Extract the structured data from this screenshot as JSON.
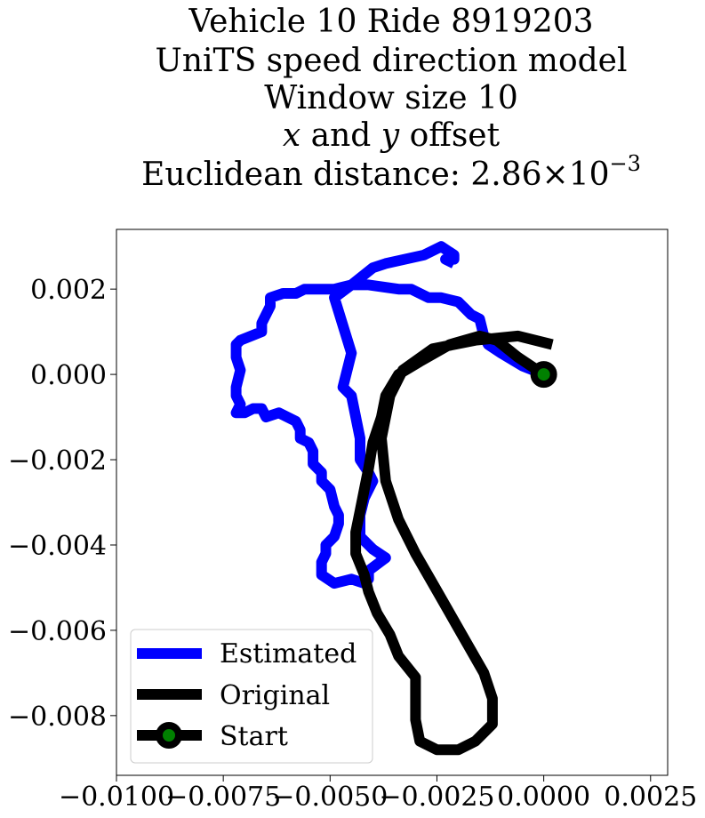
{
  "chart_data": {
    "type": "line",
    "title_lines": [
      "Vehicle 10 Ride 8919203",
      "UniTS speed direction model",
      "Window size 10"
    ],
    "title_offset": {
      "x": "x",
      "and": " and ",
      "y": "y",
      "suffix": " offset"
    },
    "title_distance": {
      "prefix": "Euclidean distance: ",
      "mantissa": "2.86",
      "times": "×",
      "base": "10",
      "exponent": "−3"
    },
    "xlabel": "",
    "ylabel": "",
    "xlim": [
      -0.01,
      0.0029
    ],
    "ylim": [
      -0.0094,
      0.0034
    ],
    "xticks": [
      -0.01,
      -0.0075,
      -0.005,
      -0.0025,
      0.0,
      0.0025
    ],
    "xtick_labels": [
      "−0.0100",
      "−0.0075",
      "−0.0050",
      "−0.0025",
      "0.0000",
      "0.0025"
    ],
    "yticks": [
      0.002,
      0.0,
      -0.002,
      -0.004,
      -0.006,
      -0.008
    ],
    "ytick_labels": [
      "0.002",
      "0.000",
      "−0.002",
      "−0.004",
      "−0.006",
      "−0.008"
    ],
    "grid": false,
    "legend_position": "lower-left",
    "series": [
      {
        "name": "Estimated",
        "color": "#0000ff",
        "points": [
          [
            0.0,
            0.0
          ],
          [
            -0.0005,
            0.0002
          ],
          [
            -0.001,
            0.0005
          ],
          [
            -0.0013,
            0.0007
          ],
          [
            -0.0014,
            0.0009
          ],
          [
            -0.0015,
            0.0013
          ],
          [
            -0.0017,
            0.0014
          ],
          [
            -0.002,
            0.0017
          ],
          [
            -0.0024,
            0.0018
          ],
          [
            -0.0027,
            0.0018
          ],
          [
            -0.0031,
            0.002
          ],
          [
            -0.0034,
            0.002
          ],
          [
            -0.0041,
            0.0021
          ],
          [
            -0.0045,
            0.0021
          ],
          [
            -0.0049,
            0.002
          ],
          [
            -0.0052,
            0.002
          ],
          [
            -0.0056,
            0.002
          ],
          [
            -0.0058,
            0.0019
          ],
          [
            -0.006,
            0.0019
          ],
          [
            -0.0061,
            0.0019
          ],
          [
            -0.0064,
            0.0018
          ],
          [
            -0.0064,
            0.0016
          ],
          [
            -0.0066,
            0.0012
          ],
          [
            -0.0066,
            0.001
          ],
          [
            -0.0071,
            0.0008
          ],
          [
            -0.0072,
            0.0007
          ],
          [
            -0.0072,
            0.0004
          ],
          [
            -0.0071,
            0.0001
          ],
          [
            -0.0072,
            -0.0003
          ],
          [
            -0.0072,
            -0.0005
          ],
          [
            -0.0071,
            -0.0007
          ],
          [
            -0.0072,
            -0.0009
          ],
          [
            -0.007,
            -0.0009
          ],
          [
            -0.0068,
            -0.0008
          ],
          [
            -0.0066,
            -0.0008
          ],
          [
            -0.0065,
            -0.001
          ],
          [
            -0.0062,
            -0.0009
          ],
          [
            -0.0058,
            -0.0011
          ],
          [
            -0.0057,
            -0.0013
          ],
          [
            -0.0057,
            -0.0015
          ],
          [
            -0.0055,
            -0.0016
          ],
          [
            -0.0054,
            -0.0018
          ],
          [
            -0.0054,
            -0.0021
          ],
          [
            -0.0052,
            -0.0023
          ],
          [
            -0.0052,
            -0.0025
          ],
          [
            -0.005,
            -0.0027
          ],
          [
            -0.0049,
            -0.0031
          ],
          [
            -0.0048,
            -0.0033
          ],
          [
            -0.0048,
            -0.0035
          ],
          [
            -0.0049,
            -0.0038
          ],
          [
            -0.005,
            -0.0039
          ],
          [
            -0.0051,
            -0.004
          ],
          [
            -0.0051,
            -0.0042
          ],
          [
            -0.0052,
            -0.0044
          ],
          [
            -0.0052,
            -0.0047
          ],
          [
            -0.0049,
            -0.0049
          ],
          [
            -0.0045,
            -0.0048
          ],
          [
            -0.0042,
            -0.0049
          ],
          [
            -0.0041,
            -0.0048
          ],
          [
            -0.0041,
            -0.0046
          ],
          [
            -0.0037,
            -0.0043
          ],
          [
            -0.004,
            -0.0041
          ],
          [
            -0.0043,
            -0.0038
          ],
          [
            -0.0043,
            -0.0033
          ],
          [
            -0.0042,
            -0.0029
          ],
          [
            -0.004,
            -0.0025
          ],
          [
            -0.0041,
            -0.0023
          ],
          [
            -0.0043,
            -0.002
          ],
          [
            -0.0043,
            -0.0015
          ],
          [
            -0.0045,
            -0.0005
          ],
          [
            -0.0047,
            -0.0003
          ],
          [
            -0.0045,
            0.0005
          ],
          [
            -0.0049,
            0.0018
          ],
          [
            -0.0045,
            0.0021
          ],
          [
            -0.004,
            0.0025
          ],
          [
            -0.0037,
            0.0026
          ],
          [
            -0.0028,
            0.0028
          ],
          [
            -0.0024,
            0.003
          ],
          [
            -0.0021,
            0.0028
          ],
          [
            -0.0021,
            0.0027
          ],
          [
            -0.0023,
            0.0027
          ],
          [
            -0.0021,
            0.0026
          ]
        ]
      },
      {
        "name": "Original",
        "color": "#000000",
        "points": [
          [
            0.0,
            0.0
          ],
          [
            -0.0006,
            0.0004
          ],
          [
            -0.0011,
            0.0008
          ],
          [
            -0.0015,
            0.0009
          ],
          [
            -0.0022,
            0.0007
          ],
          [
            -0.0029,
            0.0003
          ],
          [
            -0.0034,
            0.0
          ],
          [
            -0.0037,
            -0.0005
          ],
          [
            -0.0038,
            -0.001
          ],
          [
            -0.004,
            -0.0016
          ],
          [
            -0.0041,
            -0.0022
          ],
          [
            -0.0042,
            -0.0027
          ],
          [
            -0.0043,
            -0.0032
          ],
          [
            -0.0044,
            -0.0037
          ],
          [
            -0.0044,
            -0.0042
          ],
          [
            -0.0042,
            -0.0047
          ],
          [
            -0.0041,
            -0.0051
          ],
          [
            -0.0039,
            -0.0056
          ],
          [
            -0.0036,
            -0.0061
          ],
          [
            -0.0034,
            -0.0066
          ],
          [
            -0.003,
            -0.0071
          ],
          [
            -0.003,
            -0.0076
          ],
          [
            -0.003,
            -0.0081
          ],
          [
            -0.0029,
            -0.0086
          ],
          [
            -0.0025,
            -0.0088
          ],
          [
            -0.002,
            -0.0088
          ],
          [
            -0.0016,
            -0.0086
          ],
          [
            -0.0012,
            -0.0082
          ],
          [
            -0.0012,
            -0.0076
          ],
          [
            -0.0014,
            -0.007
          ],
          [
            -0.0018,
            -0.0063
          ],
          [
            -0.0022,
            -0.0056
          ],
          [
            -0.0026,
            -0.0049
          ],
          [
            -0.003,
            -0.0042
          ],
          [
            -0.0034,
            -0.0034
          ],
          [
            -0.0037,
            -0.0025
          ],
          [
            -0.0038,
            -0.0015
          ],
          [
            -0.0036,
            -0.0005
          ],
          [
            -0.0033,
            0.0001
          ],
          [
            -0.0026,
            0.0006
          ],
          [
            -0.0016,
            0.0008
          ],
          [
            -0.0006,
            0.0009
          ],
          [
            0.0002,
            0.0007
          ]
        ]
      }
    ],
    "start_marker": {
      "name": "Start",
      "x": 0.0,
      "y": 0.0,
      "edge_color": "#000000",
      "face_color": "#008000"
    }
  }
}
